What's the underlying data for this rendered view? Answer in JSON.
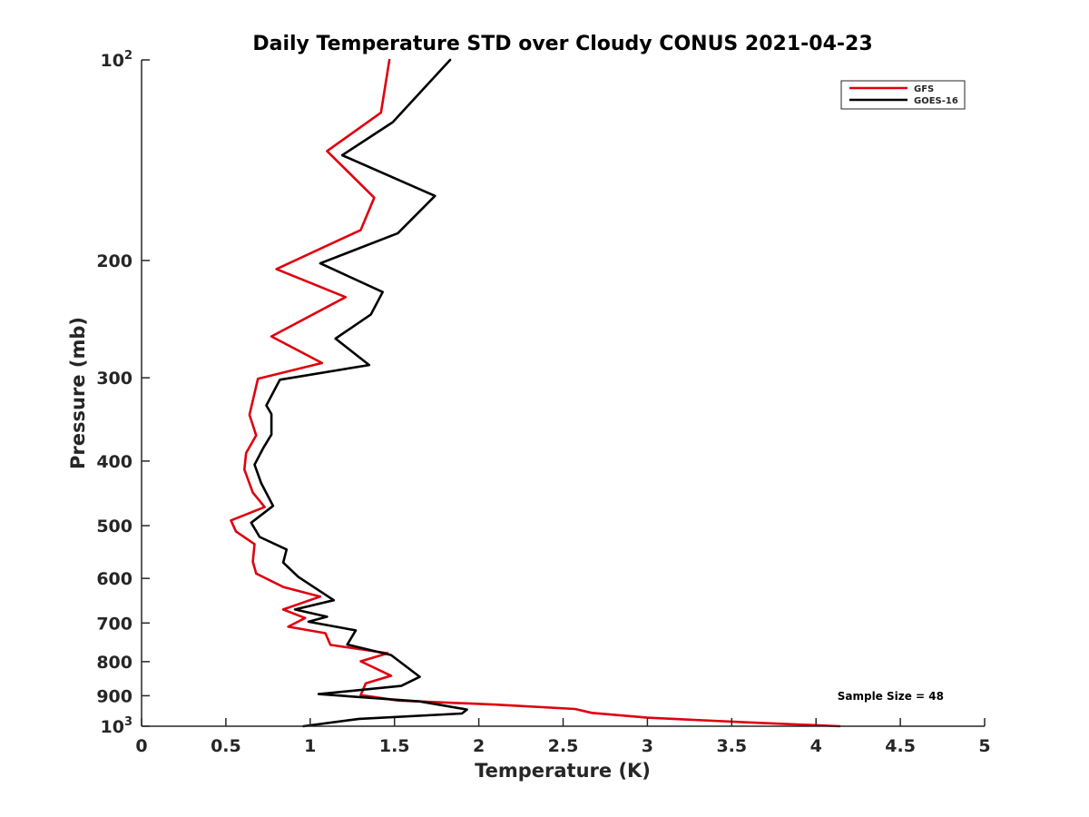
{
  "chart_data": {
    "type": "line",
    "title": "Daily Temperature STD over Cloudy CONUS 2021-04-23",
    "xlabel": "Temperature (K)",
    "ylabel": "Pressure (mb)",
    "xlim": [
      0,
      5
    ],
    "ylim": [
      100,
      1000
    ],
    "y_scale": "log",
    "y_reversed": true,
    "x_ticks": [
      0,
      0.5,
      1,
      1.5,
      2,
      2.5,
      3,
      3.5,
      4,
      4.5,
      5
    ],
    "x_tick_labels": [
      "0",
      "0.5",
      "1",
      "1.5",
      "2",
      "2.5",
      "3",
      "3.5",
      "4",
      "4.5",
      "5"
    ],
    "y_ticks": [
      100,
      200,
      300,
      400,
      500,
      600,
      700,
      800,
      900,
      1000
    ],
    "y_tick_labels": [
      {
        "base": "10",
        "exp": "2"
      },
      {
        "base": "200"
      },
      {
        "base": "300"
      },
      {
        "base": "400"
      },
      {
        "base": "500"
      },
      {
        "base": "600"
      },
      {
        "base": "700"
      },
      {
        "base": "800"
      },
      {
        "base": "900"
      },
      {
        "base": "10",
        "exp": "3"
      }
    ],
    "grid": false,
    "legend_position": "top-right",
    "annotation": "Sample Size = 48",
    "series": [
      {
        "name": "GFS",
        "color": "#e0000e",
        "points": [
          {
            "x": 1.47,
            "y": 100
          },
          {
            "x": 1.42,
            "y": 120
          },
          {
            "x": 1.1,
            "y": 137
          },
          {
            "x": 1.38,
            "y": 161
          },
          {
            "x": 1.3,
            "y": 180
          },
          {
            "x": 0.8,
            "y": 206
          },
          {
            "x": 1.21,
            "y": 227
          },
          {
            "x": 0.77,
            "y": 260
          },
          {
            "x": 1.07,
            "y": 285
          },
          {
            "x": 0.69,
            "y": 301
          },
          {
            "x": 0.64,
            "y": 341
          },
          {
            "x": 0.68,
            "y": 366
          },
          {
            "x": 0.62,
            "y": 389
          },
          {
            "x": 0.61,
            "y": 412
          },
          {
            "x": 0.66,
            "y": 446
          },
          {
            "x": 0.73,
            "y": 469
          },
          {
            "x": 0.53,
            "y": 491
          },
          {
            "x": 0.56,
            "y": 510
          },
          {
            "x": 0.67,
            "y": 533
          },
          {
            "x": 0.66,
            "y": 566
          },
          {
            "x": 0.68,
            "y": 590
          },
          {
            "x": 0.84,
            "y": 618
          },
          {
            "x": 1.06,
            "y": 639
          },
          {
            "x": 0.84,
            "y": 668
          },
          {
            "x": 0.97,
            "y": 688
          },
          {
            "x": 0.87,
            "y": 709
          },
          {
            "x": 1.09,
            "y": 725
          },
          {
            "x": 1.12,
            "y": 755
          },
          {
            "x": 1.46,
            "y": 777
          },
          {
            "x": 1.3,
            "y": 799
          },
          {
            "x": 1.48,
            "y": 840
          },
          {
            "x": 1.33,
            "y": 862
          },
          {
            "x": 1.3,
            "y": 898
          },
          {
            "x": 1.52,
            "y": 915
          },
          {
            "x": 2.1,
            "y": 928
          },
          {
            "x": 2.57,
            "y": 942
          },
          {
            "x": 2.67,
            "y": 955
          },
          {
            "x": 3.0,
            "y": 971
          },
          {
            "x": 3.6,
            "y": 987
          },
          {
            "x": 4.14,
            "y": 1000
          }
        ]
      },
      {
        "name": "GOES-16",
        "color": "#000000",
        "points": [
          {
            "x": 1.83,
            "y": 100
          },
          {
            "x": 1.49,
            "y": 124
          },
          {
            "x": 1.19,
            "y": 139
          },
          {
            "x": 1.74,
            "y": 160
          },
          {
            "x": 1.52,
            "y": 182
          },
          {
            "x": 1.06,
            "y": 202
          },
          {
            "x": 1.43,
            "y": 223
          },
          {
            "x": 1.36,
            "y": 241
          },
          {
            "x": 1.15,
            "y": 262
          },
          {
            "x": 1.35,
            "y": 287
          },
          {
            "x": 0.82,
            "y": 302
          },
          {
            "x": 0.74,
            "y": 330
          },
          {
            "x": 0.77,
            "y": 340
          },
          {
            "x": 0.77,
            "y": 365
          },
          {
            "x": 0.72,
            "y": 383
          },
          {
            "x": 0.67,
            "y": 405
          },
          {
            "x": 0.71,
            "y": 432
          },
          {
            "x": 0.78,
            "y": 467
          },
          {
            "x": 0.65,
            "y": 495
          },
          {
            "x": 0.7,
            "y": 520
          },
          {
            "x": 0.86,
            "y": 543
          },
          {
            "x": 0.84,
            "y": 568
          },
          {
            "x": 0.93,
            "y": 597
          },
          {
            "x": 1.14,
            "y": 647
          },
          {
            "x": 0.91,
            "y": 668
          },
          {
            "x": 1.1,
            "y": 685
          },
          {
            "x": 0.99,
            "y": 697
          },
          {
            "x": 1.27,
            "y": 718
          },
          {
            "x": 1.22,
            "y": 754
          },
          {
            "x": 1.48,
            "y": 782
          },
          {
            "x": 1.59,
            "y": 821
          },
          {
            "x": 1.65,
            "y": 843
          },
          {
            "x": 1.54,
            "y": 870
          },
          {
            "x": 1.05,
            "y": 895
          },
          {
            "x": 1.65,
            "y": 918
          },
          {
            "x": 1.93,
            "y": 944
          },
          {
            "x": 1.9,
            "y": 957
          },
          {
            "x": 1.29,
            "y": 975
          },
          {
            "x": 0.96,
            "y": 1000
          }
        ]
      }
    ]
  }
}
